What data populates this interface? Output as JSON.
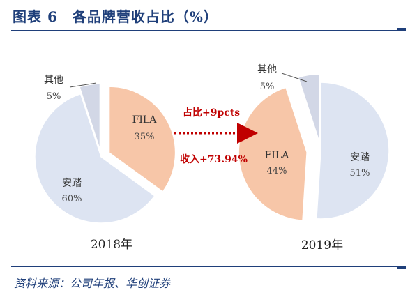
{
  "figure": {
    "title": "图表 6　各品牌营收占比（%）",
    "source": "资料来源：公司年报、华创证券"
  },
  "chart_data": [
    {
      "type": "pie",
      "year_label": "2018年",
      "slices": [
        {
          "name": "FILA",
          "value": 35,
          "value_label": "35%",
          "color": "#f7c6a8",
          "exploded": true
        },
        {
          "name": "安踏",
          "value": 60,
          "value_label": "60%",
          "color": "#dde4f2",
          "exploded": false
        },
        {
          "name": "其他",
          "value": 5,
          "value_label": "5%",
          "color": "#d2d7e6",
          "exploded": true
        }
      ]
    },
    {
      "type": "pie",
      "year_label": "2019年",
      "slices": [
        {
          "name": "安踏",
          "value": 51,
          "value_label": "51%",
          "color": "#dde4f2",
          "exploded": false
        },
        {
          "name": "FILA",
          "value": 44,
          "value_label": "44%",
          "color": "#f7c6a8",
          "exploded": true
        },
        {
          "name": "其他",
          "value": 5,
          "value_label": "5%",
          "color": "#d2d7e6",
          "exploded": true
        }
      ]
    }
  ],
  "annotations": {
    "share_change": "占比+9pcts",
    "revenue_change": "收入+73.94%",
    "color": "#c00000"
  }
}
